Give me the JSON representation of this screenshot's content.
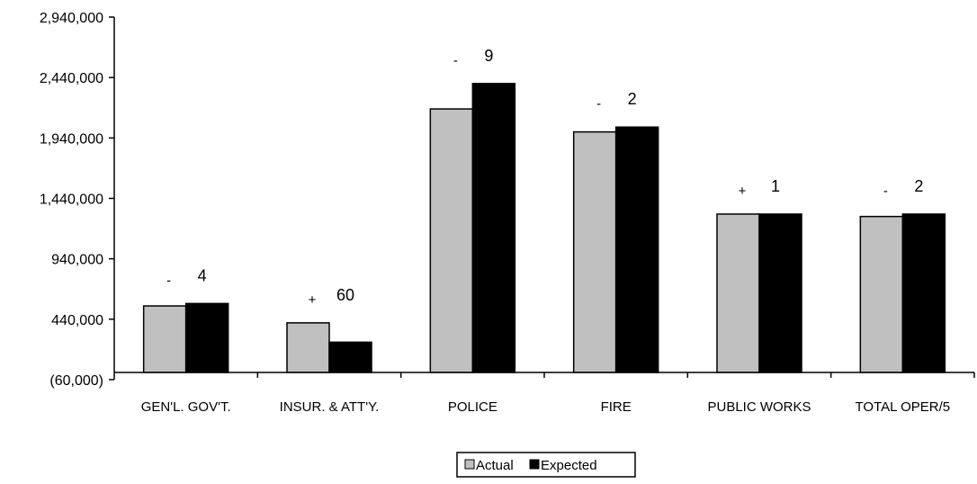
{
  "chart_data": {
    "type": "bar",
    "categories": [
      "GEN'L. GOV'T.",
      "INSUR. & ATT'Y.",
      "POLICE",
      "FIRE",
      "PUBLIC WORKS",
      "TOTAL OPER/5"
    ],
    "series": [
      {
        "name": "Actual",
        "values": [
          550000,
          410000,
          2180000,
          1990000,
          1310000,
          1290000
        ],
        "color": "#c0c0c0"
      },
      {
        "name": "Expected",
        "values": [
          570000,
          250000,
          2390000,
          2030000,
          1310000,
          1310000
        ],
        "color": "#000000"
      }
    ],
    "annotations": [
      {
        "sign": "-",
        "value": "4"
      },
      {
        "sign": "+",
        "value": "60"
      },
      {
        "sign": "-",
        "value": "9"
      },
      {
        "sign": "-",
        "value": "2"
      },
      {
        "sign": "+",
        "value": "1"
      },
      {
        "sign": "-",
        "value": "2"
      }
    ],
    "yticks": [
      "(60,000)",
      "440,000",
      "940,000",
      "1,440,000",
      "1,940,000",
      "2,440,000",
      "2,940,000"
    ],
    "ytick_values": [
      -60000,
      440000,
      940000,
      1440000,
      1940000,
      2440000,
      2940000
    ],
    "ylim": [
      -60000,
      2940000
    ],
    "gridlines": false,
    "legend_position": "bottom-center",
    "title": "",
    "xlabel": "",
    "ylabel": ""
  }
}
